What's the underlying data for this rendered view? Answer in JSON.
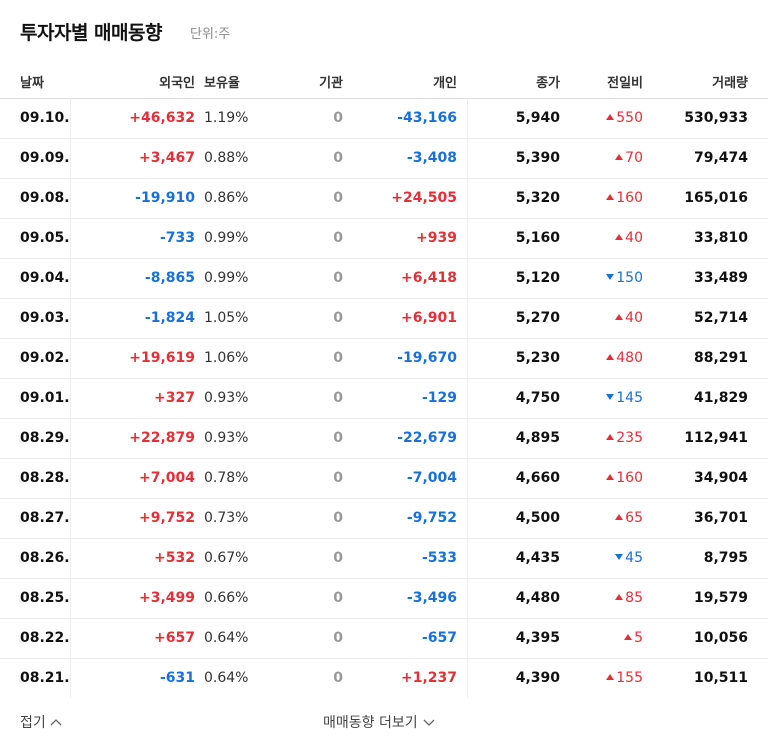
{
  "header": {
    "title": "투자자별 매매동향",
    "unit": "단위:주"
  },
  "table": {
    "columns": [
      "날짜",
      "외국인",
      "보유율",
      "기관",
      "개인",
      "종가",
      "전일비",
      "거래량"
    ],
    "rows": [
      {
        "date": "09.10.",
        "foreign": "+46,632",
        "ratio": "1.19%",
        "institution": "0",
        "individual": "-43,166",
        "close": "5,940",
        "change_dir": "up",
        "change": "550",
        "volume": "530,933"
      },
      {
        "date": "09.09.",
        "foreign": "+3,467",
        "ratio": "0.88%",
        "institution": "0",
        "individual": "-3,408",
        "close": "5,390",
        "change_dir": "up",
        "change": "70",
        "volume": "79,474"
      },
      {
        "date": "09.08.",
        "foreign": "-19,910",
        "ratio": "0.86%",
        "institution": "0",
        "individual": "+24,505",
        "close": "5,320",
        "change_dir": "up",
        "change": "160",
        "volume": "165,016"
      },
      {
        "date": "09.05.",
        "foreign": "-733",
        "ratio": "0.99%",
        "institution": "0",
        "individual": "+939",
        "close": "5,160",
        "change_dir": "up",
        "change": "40",
        "volume": "33,810"
      },
      {
        "date": "09.04.",
        "foreign": "-8,865",
        "ratio": "0.99%",
        "institution": "0",
        "individual": "+6,418",
        "close": "5,120",
        "change_dir": "down",
        "change": "150",
        "volume": "33,489"
      },
      {
        "date": "09.03.",
        "foreign": "-1,824",
        "ratio": "1.05%",
        "institution": "0",
        "individual": "+6,901",
        "close": "5,270",
        "change_dir": "up",
        "change": "40",
        "volume": "52,714"
      },
      {
        "date": "09.02.",
        "foreign": "+19,619",
        "ratio": "1.06%",
        "institution": "0",
        "individual": "-19,670",
        "close": "5,230",
        "change_dir": "up",
        "change": "480",
        "volume": "88,291"
      },
      {
        "date": "09.01.",
        "foreign": "+327",
        "ratio": "0.93%",
        "institution": "0",
        "individual": "-129",
        "close": "4,750",
        "change_dir": "down",
        "change": "145",
        "volume": "41,829"
      },
      {
        "date": "08.29.",
        "foreign": "+22,879",
        "ratio": "0.93%",
        "institution": "0",
        "individual": "-22,679",
        "close": "4,895",
        "change_dir": "up",
        "change": "235",
        "volume": "112,941"
      },
      {
        "date": "08.28.",
        "foreign": "+7,004",
        "ratio": "0.78%",
        "institution": "0",
        "individual": "-7,004",
        "close": "4,660",
        "change_dir": "up",
        "change": "160",
        "volume": "34,904"
      },
      {
        "date": "08.27.",
        "foreign": "+9,752",
        "ratio": "0.73%",
        "institution": "0",
        "individual": "-9,752",
        "close": "4,500",
        "change_dir": "up",
        "change": "65",
        "volume": "36,701"
      },
      {
        "date": "08.26.",
        "foreign": "+532",
        "ratio": "0.67%",
        "institution": "0",
        "individual": "-533",
        "close": "4,435",
        "change_dir": "down",
        "change": "45",
        "volume": "8,795"
      },
      {
        "date": "08.25.",
        "foreign": "+3,499",
        "ratio": "0.66%",
        "institution": "0",
        "individual": "-3,496",
        "close": "4,480",
        "change_dir": "up",
        "change": "85",
        "volume": "19,579"
      },
      {
        "date": "08.22.",
        "foreign": "+657",
        "ratio": "0.64%",
        "institution": "0",
        "individual": "-657",
        "close": "4,395",
        "change_dir": "up",
        "change": "5",
        "volume": "10,056"
      },
      {
        "date": "08.21.",
        "foreign": "-631",
        "ratio": "0.64%",
        "institution": "0",
        "individual": "+1,237",
        "close": "4,390",
        "change_dir": "up",
        "change": "155",
        "volume": "10,511"
      }
    ]
  },
  "footer": {
    "collapse": "접기",
    "more": "매매동향 더보기"
  }
}
